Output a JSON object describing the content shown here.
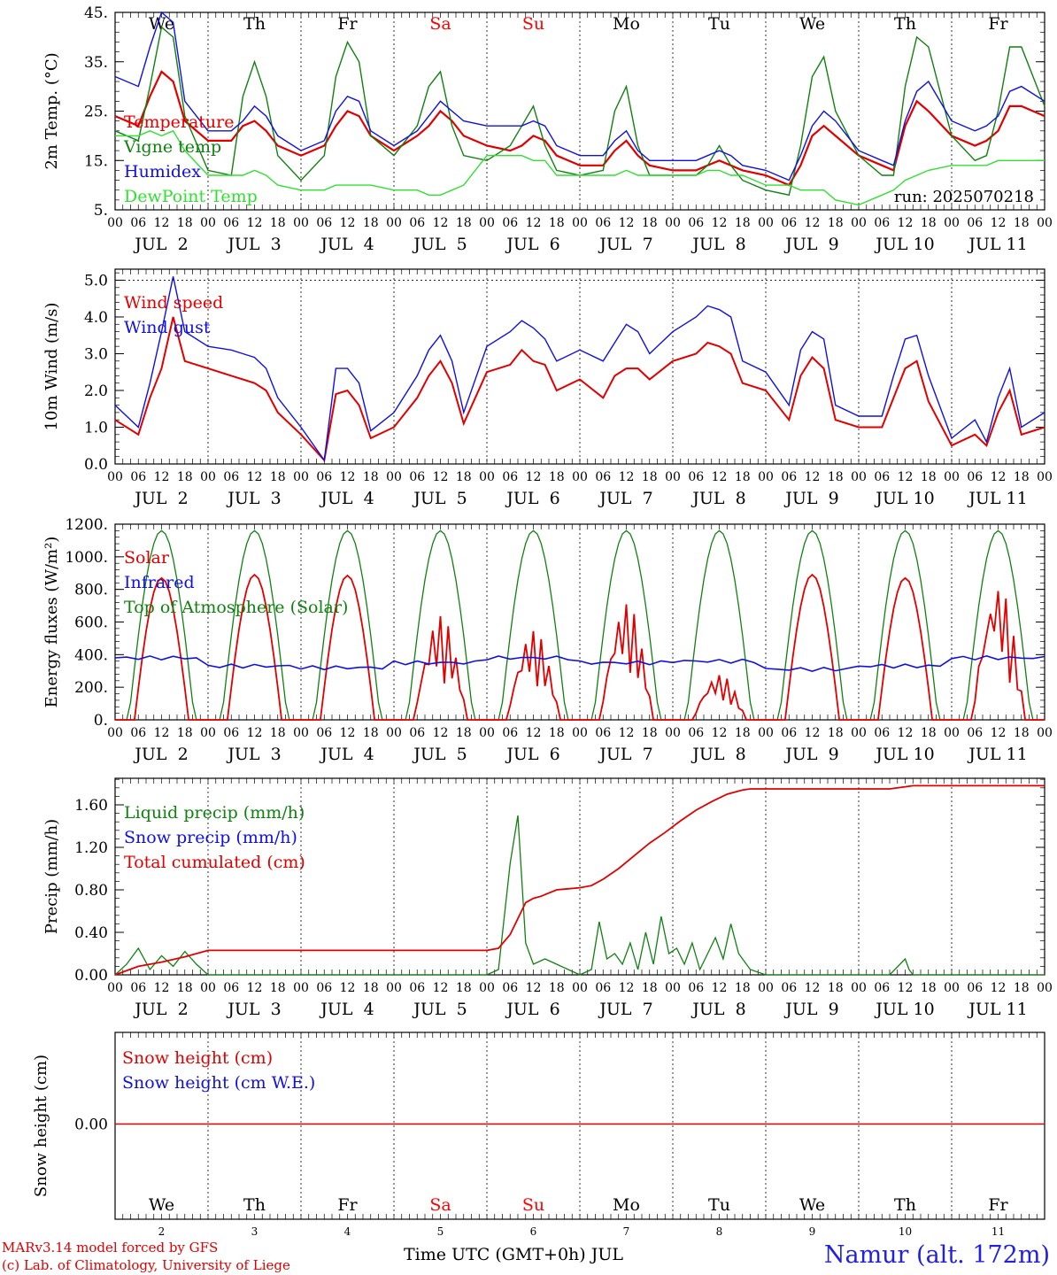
{
  "meta": {
    "run_label": "run: 2025070218"
  },
  "footer": {
    "credit_line1": "MARv3.14 model forced by GFS",
    "credit_line2": "(c) Lab. of Climatology, University of Liege",
    "x_axis_title": "Time UTC (GMT+0h) JUL",
    "station": "Namur (alt. 172m)"
  },
  "colors": {
    "red": "#e00000",
    "green": "#108010",
    "blue": "#1010e0",
    "lightgreen": "#30e030",
    "weekend": "#ff0000"
  },
  "chart_data": [
    {
      "type": "line",
      "ylabel": "2m Temp. (°C)",
      "ylim": [
        5,
        45
      ],
      "yticks": [
        "5.",
        "15.",
        "25.",
        "35.",
        "45."
      ],
      "ytick_values": [
        5,
        15,
        25,
        35,
        45
      ],
      "weekday_labels": [
        "We",
        "Th",
        "Fr",
        "Sa",
        "Su",
        "Mo",
        "Tu",
        "We",
        "Th",
        "Fr"
      ],
      "weekend_indices": [
        3,
        4
      ],
      "hour_ticks": [
        "00",
        "06",
        "12",
        "18"
      ],
      "date_labels": [
        "JUL  2",
        "JUL  3",
        "JUL  4",
        "JUL  5",
        "JUL  6",
        "JUL  7",
        "JUL  8",
        "JUL  9",
        "JUL 10",
        "JUL 11"
      ],
      "x_hours": [
        0,
        6,
        9,
        12,
        15,
        18,
        24,
        30,
        33,
        36,
        39,
        42,
        48,
        54,
        57,
        60,
        63,
        66,
        72,
        78,
        81,
        84,
        87,
        90,
        96,
        102,
        105,
        108,
        111,
        114,
        120,
        126,
        129,
        132,
        135,
        138,
        144,
        150,
        153,
        156,
        159,
        162,
        168,
        174,
        177,
        180,
        183,
        186,
        192,
        198,
        201,
        204,
        207,
        210,
        216,
        222,
        225,
        228,
        231,
        234,
        240
      ],
      "series": [
        {
          "name": "Temperature",
          "color": "#e00000",
          "values": [
            24,
            22,
            28,
            33,
            31,
            23,
            19,
            19,
            22,
            23,
            21,
            18,
            16,
            18,
            22,
            25,
            24,
            20,
            17,
            20,
            22,
            25,
            23,
            20,
            18,
            17,
            18,
            20,
            19,
            16,
            14,
            14,
            17,
            19,
            16,
            14,
            13,
            13,
            14,
            15,
            14,
            13,
            12,
            10,
            14,
            20,
            22,
            20,
            16,
            14,
            13,
            22,
            27,
            25,
            20,
            18,
            19,
            21,
            26,
            26,
            24
          ]
        },
        {
          "name": "Vigne temp",
          "color": "#108010",
          "values": [
            21,
            19,
            30,
            42,
            40,
            24,
            13,
            12,
            28,
            35,
            28,
            16,
            11,
            16,
            32,
            39,
            35,
            20,
            16,
            22,
            30,
            33,
            22,
            16,
            15,
            18,
            22,
            26,
            18,
            13,
            12,
            13,
            25,
            30,
            18,
            12,
            12,
            12,
            14,
            18,
            14,
            11,
            9,
            8,
            18,
            32,
            36,
            25,
            16,
            12,
            12,
            30,
            40,
            38,
            20,
            15,
            16,
            25,
            38,
            38,
            26
          ]
        },
        {
          "name": "Humidex",
          "color": "#1010e0",
          "values": [
            32,
            30,
            38,
            45,
            43,
            27,
            21,
            21,
            23,
            26,
            24,
            20,
            17,
            19,
            25,
            28,
            27,
            21,
            18,
            21,
            24,
            27,
            25,
            23,
            22,
            22,
            22,
            23,
            22,
            18,
            16,
            16,
            19,
            21,
            17,
            15,
            15,
            15,
            16,
            17,
            16,
            14,
            13,
            11,
            16,
            22,
            25,
            23,
            17,
            15,
            14,
            23,
            29,
            31,
            23,
            21,
            22,
            24,
            29,
            30,
            27
          ]
        },
        {
          "name": "DewPoint Temp",
          "color": "#30e030",
          "values": [
            20,
            20,
            21,
            20,
            21,
            17,
            12,
            12,
            12,
            13,
            12,
            10,
            9,
            9,
            10,
            10,
            10,
            10,
            9,
            9,
            8,
            8,
            9,
            10,
            16,
            16,
            16,
            15,
            15,
            12,
            12,
            12,
            12,
            13,
            12,
            12,
            12,
            12,
            13,
            13,
            12,
            12,
            10,
            10,
            9,
            9,
            9,
            7,
            6,
            8,
            9,
            11,
            12,
            13,
            14,
            14,
            14,
            15,
            15,
            15,
            15
          ]
        }
      ]
    },
    {
      "type": "line",
      "ylabel": "10m Wind (m/s)",
      "ylim": [
        0,
        5.3
      ],
      "yticks": [
        "0.0",
        "1.0",
        "2.0",
        "3.0",
        "4.0",
        "5.0"
      ],
      "ytick_values": [
        0,
        1,
        2,
        3,
        4,
        5
      ],
      "date_labels": [
        "JUL  2",
        "JUL  3",
        "JUL  4",
        "JUL  5",
        "JUL  6",
        "JUL  7",
        "JUL  8",
        "JUL  9",
        "JUL 10",
        "JUL 11"
      ],
      "x_hours": [
        0,
        6,
        9,
        12,
        15,
        18,
        24,
        30,
        33,
        36,
        39,
        42,
        48,
        54,
        57,
        60,
        63,
        66,
        72,
        78,
        81,
        84,
        87,
        90,
        96,
        102,
        105,
        108,
        111,
        114,
        120,
        126,
        129,
        132,
        135,
        138,
        144,
        150,
        153,
        156,
        159,
        162,
        168,
        174,
        177,
        180,
        183,
        186,
        192,
        198,
        201,
        204,
        207,
        210,
        216,
        222,
        225,
        228,
        231,
        234,
        240
      ],
      "series": [
        {
          "name": "Wind speed",
          "color": "#e00000",
          "values": [
            1.2,
            0.8,
            1.8,
            2.6,
            4.0,
            2.8,
            2.6,
            2.4,
            2.3,
            2.2,
            2.0,
            1.4,
            0.8,
            0.1,
            1.9,
            2.0,
            1.6,
            0.7,
            1.0,
            1.8,
            2.4,
            2.8,
            2.2,
            1.1,
            2.5,
            2.7,
            3.1,
            2.8,
            2.7,
            2.0,
            2.3,
            1.8,
            2.4,
            2.6,
            2.6,
            2.3,
            2.8,
            3.0,
            3.3,
            3.2,
            3.0,
            2.2,
            2.0,
            1.2,
            2.4,
            2.9,
            2.6,
            1.2,
            1.0,
            1.0,
            1.8,
            2.6,
            2.8,
            1.7,
            0.5,
            0.8,
            0.5,
            1.4,
            2.0,
            0.8,
            1.0
          ]
        },
        {
          "name": "Wind gust",
          "color": "#1010e0",
          "values": [
            1.6,
            1.0,
            2.2,
            3.6,
            5.1,
            3.6,
            3.2,
            3.1,
            3.0,
            2.9,
            2.6,
            1.8,
            1.0,
            0.1,
            2.6,
            2.6,
            2.2,
            0.9,
            1.4,
            2.4,
            3.1,
            3.5,
            2.8,
            1.4,
            3.2,
            3.6,
            3.9,
            3.7,
            3.4,
            2.8,
            3.1,
            2.8,
            3.3,
            3.8,
            3.6,
            3.0,
            3.6,
            4.0,
            4.3,
            4.2,
            4.0,
            2.8,
            2.5,
            1.6,
            3.1,
            3.6,
            3.4,
            1.6,
            1.3,
            1.3,
            2.4,
            3.4,
            3.5,
            2.4,
            0.7,
            1.2,
            0.6,
            1.8,
            2.6,
            1.0,
            1.4
          ]
        }
      ]
    },
    {
      "type": "line",
      "ylabel": "Energy fluxes (W/m²)",
      "ylim": [
        0,
        1200
      ],
      "yticks": [
        "0.",
        "200.",
        "400.",
        "600.",
        "800.",
        "1000.",
        "1200."
      ],
      "ytick_values": [
        0,
        200,
        400,
        600,
        800,
        1000,
        1200
      ],
      "date_labels": [
        "JUL  2",
        "JUL  3",
        "JUL  4",
        "JUL  5",
        "JUL  6",
        "JUL  7",
        "JUL  8",
        "JUL  9",
        "JUL 10",
        "JUL 11"
      ],
      "toa_peak": 1160,
      "solar_peak_daily": [
        870,
        890,
        885,
        640,
        550,
        720,
        280,
        890,
        870,
        830
      ],
      "solar_cloudy_daily": [
        false,
        false,
        false,
        true,
        true,
        true,
        true,
        false,
        false,
        true
      ],
      "infrared_daily": [
        380,
        330,
        320,
        350,
        380,
        350,
        360,
        310,
        330,
        380
      ],
      "series": [
        {
          "name": "Solar",
          "color": "#e00000"
        },
        {
          "name": "Infrared",
          "color": "#1010e0"
        },
        {
          "name": "Top of Atmosphere (Solar)",
          "color": "#108010"
        }
      ]
    },
    {
      "type": "line",
      "ylabel": "Precip (mm/h)",
      "ylim": [
        0,
        1.85
      ],
      "yticks": [
        "0.00",
        "0.40",
        "0.80",
        "1.20",
        "1.60"
      ],
      "ytick_values": [
        0,
        0.4,
        0.8,
        1.2,
        1.6
      ],
      "date_labels": [
        "JUL  2",
        "JUL  3",
        "JUL  4",
        "JUL  5",
        "JUL  6",
        "JUL  7",
        "JUL  8",
        "JUL  9",
        "JUL 10",
        "JUL 11"
      ],
      "liquid_x": [
        0,
        3,
        6,
        9,
        12,
        15,
        18,
        21,
        24,
        30,
        96,
        99,
        102,
        104,
        106,
        108,
        111,
        114,
        117,
        120,
        123,
        125,
        127,
        129,
        131,
        133,
        135,
        137,
        139,
        141,
        143,
        145,
        147,
        149,
        151,
        153,
        155,
        157,
        159,
        161,
        164,
        168,
        200,
        204,
        205,
        206,
        240
      ],
      "liquid_y": [
        0,
        0.1,
        0.25,
        0.05,
        0.18,
        0.08,
        0.22,
        0.1,
        0,
        0,
        0,
        0.05,
        1.05,
        1.5,
        0.3,
        0.1,
        0.15,
        0.1,
        0.05,
        0,
        0.05,
        0.5,
        0.15,
        0.2,
        0.1,
        0.3,
        0.05,
        0.4,
        0.1,
        0.55,
        0.2,
        0.25,
        0.1,
        0.3,
        0.05,
        0.2,
        0.35,
        0.15,
        0.48,
        0.2,
        0.05,
        0,
        0,
        0.15,
        0.05,
        0,
        0
      ],
      "cumul_x": [
        0,
        6,
        12,
        18,
        21,
        24,
        96,
        99,
        102,
        106,
        108,
        110,
        112,
        114,
        120,
        123,
        126,
        130,
        134,
        138,
        142,
        146,
        150,
        154,
        158,
        162,
        164,
        168,
        200,
        204,
        206,
        240
      ],
      "cumul_y": [
        0,
        0.08,
        0.12,
        0.17,
        0.2,
        0.23,
        0.23,
        0.25,
        0.38,
        0.68,
        0.72,
        0.74,
        0.77,
        0.8,
        0.82,
        0.84,
        0.9,
        1.0,
        1.12,
        1.24,
        1.34,
        1.45,
        1.55,
        1.63,
        1.7,
        1.74,
        1.75,
        1.75,
        1.75,
        1.77,
        1.78,
        1.78
      ],
      "series": [
        {
          "name": "Liquid precip (mm/h)",
          "color": "#108010"
        },
        {
          "name": "Snow precip (mm/h)",
          "color": "#1010e0"
        },
        {
          "name": "Total cumulated (cm)",
          "color": "#e00000"
        }
      ]
    },
    {
      "type": "line",
      "ylabel": "Snow height (cm)",
      "yticks": [
        "0.00"
      ],
      "ytick_values": [
        0
      ],
      "weekday_labels": [
        "We",
        "Th",
        "Fr",
        "Sa",
        "Su",
        "Mo",
        "Tu",
        "We",
        "Th",
        "Fr"
      ],
      "weekend_indices": [
        3,
        4
      ],
      "day_numbers": [
        "2",
        "3",
        "4",
        "5",
        "6",
        "7",
        "8",
        "9",
        "10",
        "11"
      ],
      "series": [
        {
          "name": "Snow height (cm)",
          "color": "#e00000",
          "values": [
            0,
            0
          ]
        },
        {
          "name": "Snow height (cm W.E.)",
          "color": "#1010e0",
          "values": [
            0,
            0
          ]
        }
      ]
    }
  ]
}
